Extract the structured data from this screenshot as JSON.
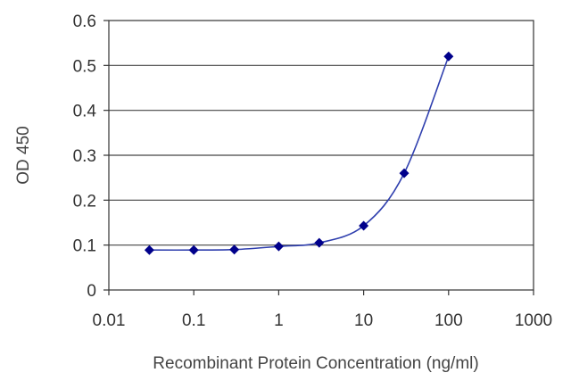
{
  "chart_data": {
    "type": "scatter",
    "title": "",
    "xlabel": "Recombinant Protein Concentration (ng/ml)",
    "ylabel": "OD 450",
    "x_scale": "log",
    "xlim": [
      0.01,
      1000
    ],
    "ylim": [
      0,
      0.6
    ],
    "x_ticks": [
      "0.01",
      "0.1",
      "1",
      "10",
      "100",
      "1000"
    ],
    "y_ticks": [
      "0",
      "0.1",
      "0.2",
      "0.3",
      "0.4",
      "0.5",
      "0.6"
    ],
    "grid": "horizontal",
    "legend": "none",
    "series": [
      {
        "color": "#00008b",
        "marker": "diamond",
        "fit_line": true,
        "points": [
          {
            "x": 0.03,
            "y": 0.089
          },
          {
            "x": 0.1,
            "y": 0.089
          },
          {
            "x": 0.3,
            "y": 0.09
          },
          {
            "x": 1,
            "y": 0.097
          },
          {
            "x": 3,
            "y": 0.105
          },
          {
            "x": 10,
            "y": 0.143
          },
          {
            "x": 30,
            "y": 0.26
          },
          {
            "x": 100,
            "y": 0.52
          }
        ]
      }
    ]
  }
}
